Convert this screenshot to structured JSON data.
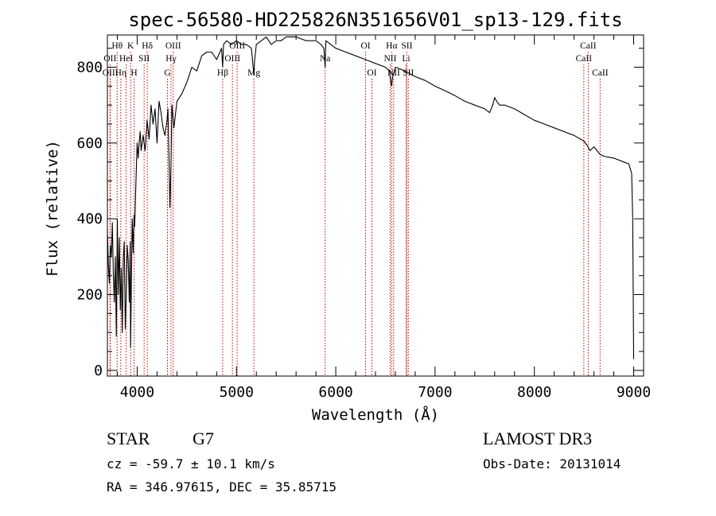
{
  "chart_data": {
    "type": "line",
    "title": "spec-56580-HD225826N351656V01_sp13-129.fits",
    "xlabel": "Wavelength (Å)",
    "ylabel": "Flux (relative)",
    "xlim": [
      3700,
      9100
    ],
    "ylim": [
      -15,
      885
    ],
    "x_ticks": [
      4000,
      5000,
      6000,
      7000,
      8000,
      9000
    ],
    "y_ticks": [
      0,
      200,
      400,
      600,
      800
    ],
    "grid": false,
    "series": [
      {
        "name": "spectrum",
        "x": [
          3700,
          3710,
          3720,
          3730,
          3740,
          3750,
          3760,
          3770,
          3780,
          3790,
          3800,
          3810,
          3820,
          3830,
          3840,
          3850,
          3860,
          3870,
          3880,
          3890,
          3900,
          3910,
          3920,
          3930,
          3933,
          3940,
          3950,
          3960,
          3968,
          3975,
          3990,
          4000,
          4010,
          4020,
          4030,
          4040,
          4050,
          4060,
          4080,
          4100,
          4120,
          4140,
          4160,
          4180,
          4200,
          4220,
          4240,
          4260,
          4280,
          4300,
          4310,
          4320,
          4330,
          4340,
          4350,
          4370,
          4400,
          4450,
          4500,
          4550,
          4600,
          4650,
          4700,
          4750,
          4800,
          4850,
          4861,
          4870,
          4900,
          4950,
          5000,
          5050,
          5100,
          5150,
          5175,
          5183,
          5200,
          5250,
          5300,
          5350,
          5400,
          5450,
          5500,
          5600,
          5700,
          5800,
          5850,
          5880,
          5893,
          5900,
          5950,
          6000,
          6100,
          6200,
          6300,
          6400,
          6500,
          6540,
          6555,
          6563,
          6570,
          6600,
          6700,
          6800,
          6900,
          7000,
          7100,
          7200,
          7300,
          7400,
          7500,
          7550,
          7580,
          7600,
          7620,
          7650,
          7700,
          7800,
          7900,
          8000,
          8100,
          8200,
          8300,
          8400,
          8500,
          8540,
          8560,
          8600,
          8660,
          8700,
          8800,
          8900,
          8950,
          8980,
          8990,
          9000
        ],
        "y": [
          370,
          280,
          230,
          330,
          300,
          390,
          250,
          180,
          300,
          90,
          400,
          200,
          350,
          160,
          270,
          100,
          300,
          340,
          110,
          200,
          330,
          290,
          180,
          340,
          60,
          200,
          400,
          310,
          410,
          380,
          520,
          600,
          560,
          600,
          630,
          580,
          600,
          620,
          580,
          660,
          610,
          700,
          650,
          690,
          600,
          710,
          680,
          640,
          620,
          660,
          690,
          560,
          430,
          540,
          700,
          640,
          710,
          730,
          760,
          800,
          790,
          830,
          840,
          840,
          820,
          850,
          800,
          860,
          870,
          860,
          870,
          860,
          860,
          850,
          780,
          820,
          860,
          870,
          880,
          860,
          870,
          870,
          880,
          880,
          870,
          870,
          860,
          850,
          800,
          870,
          860,
          850,
          840,
          830,
          820,
          810,
          800,
          790,
          760,
          750,
          770,
          800,
          790,
          775,
          765,
          750,
          738,
          725,
          710,
          700,
          690,
          680,
          700,
          720,
          710,
          700,
          700,
          690,
          675,
          660,
          650,
          640,
          630,
          620,
          605,
          590,
          580,
          590,
          570,
          565,
          560,
          550,
          545,
          520,
          400,
          30
        ]
      }
    ],
    "line_labels": [
      {
        "text": "Hθ",
        "wavelength": 3798,
        "row": 1
      },
      {
        "text": "K",
        "wavelength": 3934,
        "row": 1
      },
      {
        "text": "Hδ",
        "wavelength": 4102,
        "row": 1
      },
      {
        "text": "OII",
        "wavelength": 3727,
        "row": 2
      },
      {
        "text": "HeI",
        "wavelength": 3889,
        "row": 2
      },
      {
        "text": "SII",
        "wavelength": 4070,
        "row": 2
      },
      {
        "text": "OIII",
        "wavelength": 3729,
        "row": 3
      },
      {
        "text": "Hη",
        "wavelength": 3835,
        "row": 3
      },
      {
        "text": "H",
        "wavelength": 3969,
        "row": 3
      },
      {
        "text": "OIII",
        "wavelength": 4363,
        "row": 1
      },
      {
        "text": "Hγ",
        "wavelength": 4341,
        "row": 2
      },
      {
        "text": "G",
        "wavelength": 4305,
        "row": 3
      },
      {
        "text": "OIII",
        "wavelength": 5007,
        "row": 1
      },
      {
        "text": "OIII",
        "wavelength": 4959,
        "row": 2
      },
      {
        "text": "Hβ",
        "wavelength": 4861,
        "row": 3
      },
      {
        "text": "Mg",
        "wavelength": 5175,
        "row": 3
      },
      {
        "text": "Na",
        "wavelength": 5893,
        "row": 2
      },
      {
        "text": "OI",
        "wavelength": 6300,
        "row": 1
      },
      {
        "text": "OI",
        "wavelength": 6364,
        "row": 3
      },
      {
        "text": "Hα",
        "wavelength": 6563,
        "row": 1
      },
      {
        "text": "NII",
        "wavelength": 6548,
        "row": 2
      },
      {
        "text": "NII",
        "wavelength": 6583,
        "row": 3
      },
      {
        "text": "SII",
        "wavelength": 6716,
        "row": 1
      },
      {
        "text": "Li",
        "wavelength": 6708,
        "row": 2
      },
      {
        "text": "SII",
        "wavelength": 6731,
        "row": 3
      },
      {
        "text": "CaII",
        "wavelength": 8542,
        "row": 1
      },
      {
        "text": "CaII",
        "wavelength": 8498,
        "row": 2
      },
      {
        "text": "CaII",
        "wavelength": 8662,
        "row": 3
      }
    ]
  },
  "info": {
    "object_type": "STAR",
    "subclass": "G7",
    "survey": "LAMOST DR3",
    "redshift": "cz = -59.7 ± 10.1 km/s",
    "obs_date": "Obs-Date: 20131014",
    "coords": "RA = 346.97615, DEC =  35.85715"
  },
  "colors": {
    "line": "#000000",
    "marker_line": "#cc0000",
    "axis": "#000000"
  }
}
